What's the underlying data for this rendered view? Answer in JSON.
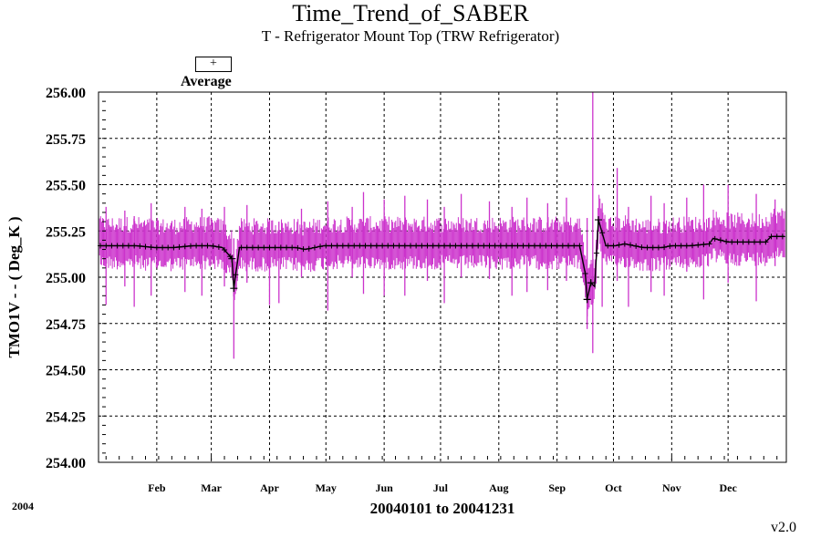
{
  "title": "Time_Trend_of_SABER",
  "subtitle": "T - Refrigerator Mount Top (TRW Refrigerator)",
  "legend": {
    "symbol": "+",
    "label": "Average"
  },
  "ylabel": "TMO1V  - - ( Deg_K )",
  "xrange_label": "20040101 to 20041231",
  "year_label": "2004",
  "version": "v2.0",
  "colors": {
    "range": "#cc33cc",
    "average": "#000000",
    "grid": "#000000"
  },
  "chart_data": {
    "type": "line",
    "title": "Time_Trend_of_SABER",
    "subtitle": "T - Refrigerator Mount Top (TRW Refrigerator)",
    "xlabel": "20040101 to 20041231",
    "ylabel": "TMO1V  - - ( Deg_K )",
    "ylim": [
      254.0,
      256.0
    ],
    "yticks": [
      "254.00",
      "254.25",
      "254.50",
      "254.75",
      "255.00",
      "255.25",
      "255.50",
      "255.75",
      "256.00"
    ],
    "xlim_days": [
      0,
      366
    ],
    "month_ticks": [
      {
        "label": "Feb",
        "day": 31
      },
      {
        "label": "Mar",
        "day": 60
      },
      {
        "label": "Apr",
        "day": 91
      },
      {
        "label": "May",
        "day": 121
      },
      {
        "label": "Jun",
        "day": 152
      },
      {
        "label": "Jul",
        "day": 182
      },
      {
        "label": "Aug",
        "day": 213
      },
      {
        "label": "Sep",
        "day": 244
      },
      {
        "label": "Oct",
        "day": 274
      },
      {
        "label": "Nov",
        "day": 305
      },
      {
        "label": "Dec",
        "day": 335
      }
    ],
    "grid": true,
    "legend_position": "top-left",
    "series": [
      {
        "name": "Average",
        "marker": "+",
        "range_color": "#cc33cc",
        "average_points": [
          [
            1,
            255.17
          ],
          [
            10,
            255.17
          ],
          [
            20,
            255.17
          ],
          [
            30,
            255.16
          ],
          [
            40,
            255.16
          ],
          [
            50,
            255.17
          ],
          [
            60,
            255.17
          ],
          [
            66,
            255.16
          ],
          [
            71,
            255.1
          ],
          [
            72,
            254.94
          ],
          [
            75,
            255.16
          ],
          [
            85,
            255.16
          ],
          [
            95,
            255.16
          ],
          [
            105,
            255.16
          ],
          [
            110,
            255.15
          ],
          [
            115,
            255.16
          ],
          [
            120,
            255.17
          ],
          [
            130,
            255.17
          ],
          [
            140,
            255.17
          ],
          [
            150,
            255.17
          ],
          [
            160,
            255.17
          ],
          [
            170,
            255.17
          ],
          [
            180,
            255.17
          ],
          [
            190,
            255.17
          ],
          [
            200,
            255.17
          ],
          [
            210,
            255.17
          ],
          [
            220,
            255.17
          ],
          [
            230,
            255.17
          ],
          [
            240,
            255.17
          ],
          [
            250,
            255.17
          ],
          [
            256,
            255.17
          ],
          [
            259,
            255.02
          ],
          [
            260,
            254.88
          ],
          [
            262,
            254.97
          ],
          [
            264,
            254.95
          ],
          [
            266,
            255.31
          ],
          [
            270,
            255.17
          ],
          [
            275,
            255.17
          ],
          [
            280,
            255.18
          ],
          [
            290,
            255.16
          ],
          [
            300,
            255.16
          ],
          [
            305,
            255.17
          ],
          [
            315,
            255.17
          ],
          [
            325,
            255.18
          ],
          [
            327,
            255.21
          ],
          [
            335,
            255.19
          ],
          [
            345,
            255.19
          ],
          [
            355,
            255.19
          ],
          [
            358,
            255.22
          ],
          [
            365,
            255.22
          ]
        ],
        "range_spikes": [
          [
            4,
            254.85,
            255.38
          ],
          [
            14,
            254.95,
            255.36
          ],
          [
            19,
            254.84,
            255.33
          ],
          [
            28,
            254.9,
            255.4
          ],
          [
            46,
            254.92,
            255.38
          ],
          [
            55,
            254.9,
            255.37
          ],
          [
            67,
            254.95,
            255.38
          ],
          [
            72,
            254.56,
            255.21
          ],
          [
            79,
            254.97,
            255.39
          ],
          [
            91,
            254.85,
            255.31
          ],
          [
            96,
            254.86,
            255.3
          ],
          [
            108,
            255.0,
            255.37
          ],
          [
            122,
            254.82,
            255.41
          ],
          [
            135,
            255.0,
            255.38
          ],
          [
            141,
            254.91,
            255.46
          ],
          [
            152,
            254.9,
            255.42
          ],
          [
            163,
            254.9,
            255.44
          ],
          [
            175,
            254.98,
            255.42
          ],
          [
            184,
            254.86,
            255.38
          ],
          [
            193,
            255.0,
            255.45
          ],
          [
            208,
            254.99,
            255.41
          ],
          [
            220,
            254.9,
            255.38
          ],
          [
            228,
            254.92,
            255.43
          ],
          [
            239,
            254.93,
            255.4
          ],
          [
            249,
            254.98,
            255.43
          ],
          [
            260,
            254.72,
            255.32
          ],
          [
            263,
            254.59,
            256.0
          ],
          [
            268,
            254.84,
            255.4
          ],
          [
            276,
            254.98,
            255.59
          ],
          [
            282,
            254.84,
            255.38
          ],
          [
            294,
            254.92,
            255.44
          ],
          [
            301,
            254.9,
            255.4
          ],
          [
            313,
            255.03,
            255.43
          ],
          [
            322,
            254.88,
            255.5
          ],
          [
            335,
            254.97,
            255.5
          ],
          [
            350,
            254.87,
            255.45
          ],
          [
            360,
            255.06,
            255.42
          ]
        ]
      }
    ]
  }
}
